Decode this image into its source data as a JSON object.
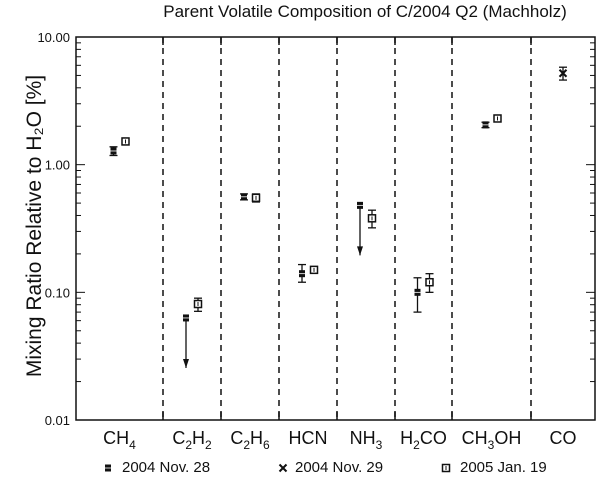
{
  "chart_data": {
    "type": "scatter",
    "title": "Parent Volatile Composition of C/2004 Q2 (Machholz)",
    "xlabel": "",
    "ylabel": "Mixing Ratio Relative to H2O [%]",
    "yscale": "log",
    "ylim": [
      0.01,
      10.0
    ],
    "yticks": [
      "10.00",
      "1.00",
      "0.10",
      "0.01"
    ],
    "categories": [
      "CH4",
      "C2H2",
      "C2H6",
      "HCN",
      "NH3",
      "H2CO",
      "CH3OH",
      "CO"
    ],
    "category_labels": [
      {
        "base": "CH",
        "sub": "4",
        "rest": ""
      },
      {
        "base": "C",
        "sub": "2",
        "rest": "H",
        "sub2": "2"
      },
      {
        "base": "C",
        "sub": "2",
        "rest": "H",
        "sub2": "6"
      },
      {
        "base": "HCN",
        "sub": "",
        "rest": ""
      },
      {
        "base": "NH",
        "sub": "3",
        "rest": ""
      },
      {
        "base": "H",
        "sub": "2",
        "rest": "CO"
      },
      {
        "base": "CH",
        "sub": "3",
        "rest": "OH"
      },
      {
        "base": "CO",
        "sub": "",
        "rest": ""
      }
    ],
    "series": [
      {
        "name": "2004 Nov. 28",
        "marker": "filled-asterisk",
        "points": [
          {
            "cat": "CH4",
            "value": 1.28,
            "err": [
              1.18,
              1.38
            ]
          },
          {
            "cat": "C2H2",
            "value": 0.063,
            "upper_limit": true
          },
          {
            "cat": "C2H6",
            "value": 0.56,
            "err": [
              0.53,
              0.59
            ]
          },
          {
            "cat": "HCN",
            "value": 0.14,
            "err": [
              0.12,
              0.165
            ]
          },
          {
            "cat": "NH3",
            "value": 0.48,
            "upper_limit": true
          },
          {
            "cat": "H2CO",
            "value": 0.1,
            "err": [
              0.07,
              0.13
            ]
          },
          {
            "cat": "CH3OH",
            "value": 2.05,
            "err": [
              1.95,
              2.15
            ]
          }
        ]
      },
      {
        "name": "2004 Nov. 29",
        "marker": "x",
        "points": [
          {
            "cat": "CO",
            "value": 5.2,
            "err": [
              4.6,
              5.8
            ]
          }
        ]
      },
      {
        "name": "2005 Jan. 19",
        "marker": "open-square",
        "points": [
          {
            "cat": "CH4",
            "value": 1.52,
            "err": [
              1.45,
              1.6
            ]
          },
          {
            "cat": "C2H2",
            "value": 0.081,
            "err": [
              0.071,
              0.09
            ]
          },
          {
            "cat": "C2H6",
            "value": 0.55,
            "err": [
              0.51,
              0.59
            ]
          },
          {
            "cat": "HCN",
            "value": 0.15,
            "err": [
              0.143,
              0.157
            ]
          },
          {
            "cat": "NH3",
            "value": 0.38,
            "err": [
              0.32,
              0.44
            ]
          },
          {
            "cat": "H2CO",
            "value": 0.12,
            "err": [
              0.1,
              0.14
            ]
          },
          {
            "cat": "CH3OH",
            "value": 2.3,
            "err": [
              2.2,
              2.4
            ]
          }
        ]
      }
    ],
    "legend": [
      "2004 Nov. 28",
      "2004 Nov. 29",
      "2005 Jan. 19"
    ],
    "legend_position": "bottom",
    "grid": false,
    "separators": "dashed vertical lines between categories"
  },
  "title": "Parent Volatile Composition of C/2004 Q2 (Machholz)",
  "ylabel": "Mixing Ratio Relative to H₂O [%]",
  "legend": {
    "item1": "2004 Nov. 28",
    "item2": "2004 Nov. 29",
    "item3": "2005 Jan. 19"
  },
  "colors": {
    "ink": "#111111",
    "background": "#ffffff"
  }
}
